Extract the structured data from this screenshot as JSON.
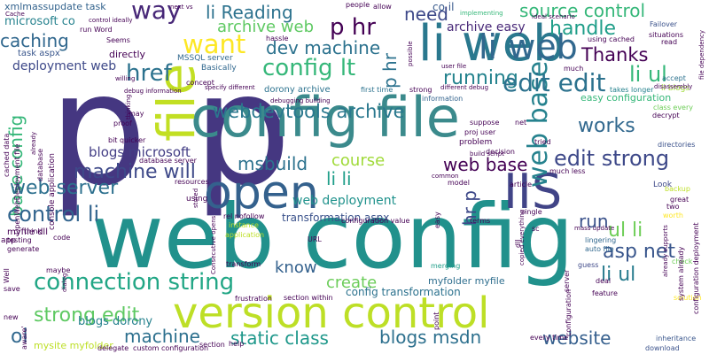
{
  "words": {
    "p": "p",
    "web_config": "web config",
    "config_file": "config file",
    "version_control": "version control",
    "open": "open",
    "iis": "IIS",
    "li_web": "li web",
    "p_hr": "p hr",
    "p_mid": "p",
    "way": "way",
    "want": "want",
    "config_lt": "config lt",
    "dev_machine": "dev machine",
    "href": "href",
    "li_reading": "li Reading",
    "need": "need",
    "source_control": "source control",
    "handle": "handle",
    "thanks": "Thanks",
    "running": "running",
    "edit_edit": "edit edit",
    "li_ul": "li ul",
    "works": "works",
    "edit_strong": "edit strong",
    "web_base": "web base",
    "base_strong": "base strong",
    "archive_web": "archive web",
    "caching": "caching",
    "archive_easy": "archive easy",
    "machine_will": "machine will",
    "web_server": "web server",
    "control_li": "control li",
    "connection_string": "connection string",
    "strong_edit": "strong edit",
    "machine": "machine",
    "ol": "ol",
    "webdevtools_archive": "webdevtools archive",
    "blogs_microsoft": "blogs microsoft",
    "msbuild": "msbuild",
    "course": "course",
    "li_li": "li li",
    "create": "create",
    "know": "know",
    "asp_net": "asp net",
    "run": "run",
    "ul_li": "ul li",
    "li_ul2": "li ul",
    "static_class": "static class",
    "blogs_msdn": "blogs msdn",
    "website": "website",
    "config_transformation": "config transformation",
    "myfolder_myfile": "myfolder myfile",
    "blogs_dorony": "blogs dorony",
    "transformation_aspx": "transformation aspx",
    "web_deployment": "web deployment",
    "mysite_myfolder": "mysite myfolder",
    "hr": "hr p",
    "base_config": "base config",
    "file": "file",
    "xmlmassupdate_task": "xmlmassupdate task",
    "microsoft_co": "microsoft co",
    "deployment_web": "deployment web",
    "task_aspx": "task aspx",
    "directly": "directly",
    "mssql_server": "MSSQL server",
    "basically": "Basically",
    "dorony_archive": "dorony archive",
    "co_il": "co il",
    "implementing": "implementing",
    "failover": "Failover",
    "first_time": "first time",
    "strong": "strong",
    "information": "information",
    "easy_configuration": "easy configuration",
    "takes_longer": "takes longer",
    "li_blogs": "li blogs",
    "class_every": "class every",
    "accept": "accept",
    "decrypt": "decrypt",
    "directories": "directories",
    "look": "Look",
    "great": "great",
    "backup": "backup",
    "two": "two",
    "worth": "worth",
    "solution": "solution",
    "feature": "feature",
    "deal": "deal",
    "guess": "guess",
    "check": "check",
    "inheritance": "inheritance",
    "download": "download",
    "merging": "merging",
    "lingering": "lingering",
    "auto_file": "auto file",
    "section_within": "section within",
    "frustration": "frustration",
    "custom_configuration": "custom configuration",
    "delegate": "delegate",
    "help": "help",
    "application": "application",
    "instance": "instance",
    "rel_nofollow": "rel nofollow",
    "using": "using",
    "resources": "resources",
    "database_server": "database server",
    "bit_quicker": "bit quicker",
    "proof": "proof",
    "may": "may",
    "myfile_dll": "myfile dll",
    "testing": "testing",
    "generate": "generate",
    "save": "save",
    "new": "new",
    "think": "think",
    "app": "app",
    "code": "code",
    "maybe": "maybe",
    "url": "URL",
    "terms": "terms",
    "single": "single",
    "model": "model",
    "article": "article",
    "problem": "problem",
    "decision": "decision",
    "tried": "tried",
    "suppose": "suppose",
    "net": "net",
    "proj_user": "proj user",
    "concept": "concept",
    "thinking": "thinking",
    "hassle": "hassle",
    "seems": "Seems",
    "run_word": "run Word",
    "using_cached": "using cached",
    "situations": "situations",
    "read": "read",
    "much": "much",
    "user_file": "user file",
    "people": "people",
    "allow": "allow",
    "next_vs": "next vs",
    "cache": "Cache",
    "control_ideally": "control ideally",
    "ideal_scenario": "ideal scenario",
    "disassembly": "disassembly",
    "file_dependency": "file dependency",
    "system_already": "system already",
    "configuration_deployment": "configuration deployment",
    "already_supports": "already supports",
    "configuration_value": "configuration value",
    "console_application": "console application",
    "cached_data": "cached data",
    "database": "database",
    "openwebdeployment_file": "OpenWebDeployment file",
    "well": "Well",
    "aware": "aware'",
    "section": "section",
    "much_less": "much less",
    "stored": "stored",
    "transform": "transform",
    "consecutive_opens": "Consecutive opens",
    "dialog": "dialog",
    "copied_everything": "copied everything",
    "sc": "sc",
    "dll": "dll",
    "point": "point",
    "server": "server",
    "configuration": "configuration",
    "every_time": "every time",
    "specify_different": "specify different",
    "willing": "willing",
    "debug_information": "debug information",
    "different_debug": "different debug",
    "debugging_building": "debugging building",
    "mass_update": "mass update",
    "easy": "easy",
    "build_script": "build script",
    "possible": "possible",
    "common": "common",
    "already": "already"
  }
}
